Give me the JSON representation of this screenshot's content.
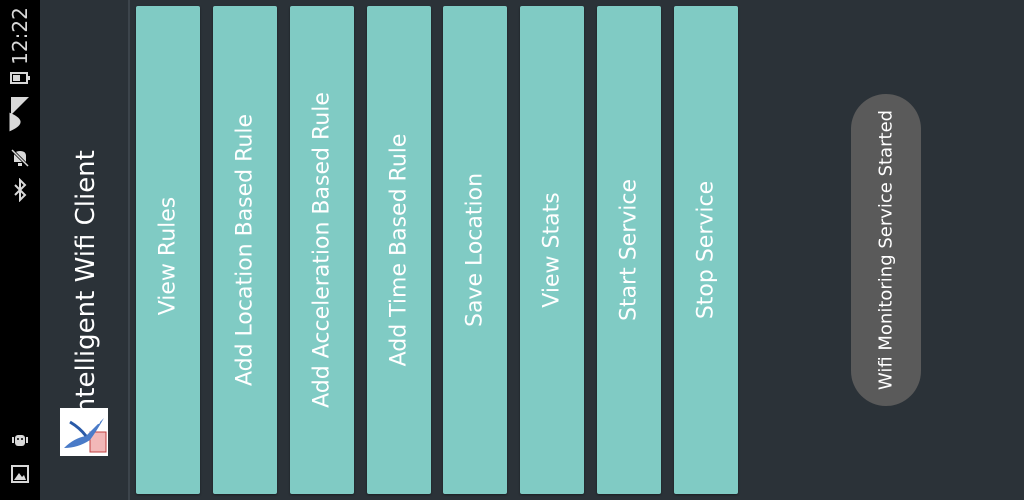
{
  "status_bar": {
    "time": "12:22",
    "icons": [
      "battery-icon",
      "signal-icon",
      "wifi-icon",
      "muted-alarm-icon",
      "bluetooth-icon",
      "debug-icon",
      "gallery-icon"
    ]
  },
  "app": {
    "title": "Intelligent Wifi Client",
    "icon": "app-logo-bird"
  },
  "buttons": {
    "view_rules": "View Rules",
    "add_location_rule": "Add Location Based Rule",
    "add_acceleration_rule": "Add Acceleration Based Rule",
    "add_time_rule": "Add Time Based Rule",
    "save_location": "Save Location",
    "view_stats": "View Stats",
    "start_service": "Start Service",
    "stop_service": "Stop Service"
  },
  "toast": {
    "message": "Wifi Monitoring Service Started"
  },
  "colors": {
    "button": "#80cbc4",
    "background": "#2b3238",
    "toast": "#5a5a5a"
  }
}
